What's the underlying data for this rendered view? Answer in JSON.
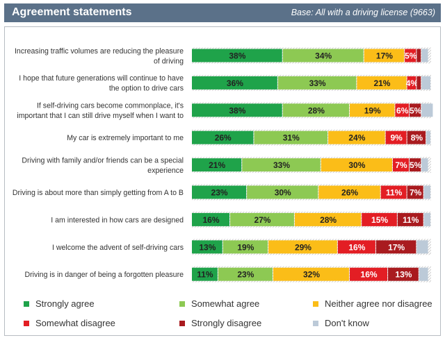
{
  "header": {
    "title": "Agreement statements",
    "base": "Base: All with a driving license (9663)"
  },
  "colors": {
    "strongly_agree": "#1fa34a",
    "somewhat_agree": "#8dc953",
    "neither": "#fbbd18",
    "somewhat_disagree": "#e31e24",
    "strongly_disagree": "#a91b1f",
    "dont_know": "#bccad8",
    "header_bg": "#5b7189"
  },
  "chart_data": {
    "type": "bar",
    "orientation": "horizontal",
    "stacked": true,
    "xlim": [
      0,
      100
    ],
    "categories": [
      "Increasing traffic volumes are reducing the pleasure of driving",
      "I hope that future generations will continue to have the option to drive cars",
      "If self-driving cars become commonplace, it's important that I can still drive myself when I want to",
      "My car is extremely important to me",
      "Driving with family and/or friends can be a special experience",
      "Driving is about more than simply getting from A to B",
      "I am interested in how cars are designed",
      "I welcome the advent of self-driving cars",
      "Driving is in danger of being a forgotten pleasure"
    ],
    "category_lines": [
      [
        "Increasing traffic volumes are reducing the pleasure",
        "of driving"
      ],
      [
        "I hope that future generations will continue to have",
        "the option to drive cars"
      ],
      [
        "If self-driving cars become commonplace, it's",
        "important that I can still drive myself when I want to"
      ],
      [
        "My car is extremely important to me"
      ],
      [
        "Driving with family and/or friends can be a special",
        "experience"
      ],
      [
        "Driving is about more than simply getting from A to B"
      ],
      [
        "I am interested in how cars are designed"
      ],
      [
        "I welcome the advent of self-driving cars"
      ],
      [
        "Driving is in danger of being a forgotten pleasure"
      ]
    ],
    "series": [
      {
        "name": "Strongly agree",
        "key": "strongly_agree",
        "values": [
          38,
          36,
          38,
          26,
          21,
          23,
          16,
          13,
          11
        ],
        "labels": [
          "38%",
          "36%",
          "38%",
          "26%",
          "21%",
          "23%",
          "16%",
          "13%",
          "11%"
        ]
      },
      {
        "name": "Somewhat agree",
        "key": "somewhat_agree",
        "values": [
          34,
          33,
          28,
          31,
          33,
          30,
          27,
          19,
          23
        ],
        "labels": [
          "34%",
          "33%",
          "28%",
          "31%",
          "33%",
          "30%",
          "27%",
          "19%",
          "23%"
        ]
      },
      {
        "name": "Neither agree nor disagree",
        "key": "neither",
        "values": [
          17,
          21,
          19,
          24,
          30,
          26,
          28,
          29,
          32
        ],
        "labels": [
          "17%",
          "21%",
          "19%",
          "24%",
          "30%",
          "26%",
          "28%",
          "29%",
          "32%"
        ]
      },
      {
        "name": "Somewhat disagree",
        "key": "somewhat_disagree",
        "values": [
          5,
          4,
          6,
          9,
          7,
          11,
          15,
          16,
          16
        ],
        "labels": [
          "5%",
          "4%",
          "6%",
          "9%",
          "7%",
          "11%",
          "15%",
          "16%",
          "16%"
        ]
      },
      {
        "name": "Strongly disagree",
        "key": "strongly_disagree",
        "values": [
          2,
          2,
          5,
          8,
          5,
          7,
          11,
          17,
          13
        ],
        "labels": [
          "",
          "",
          "5%",
          "8%",
          "5%",
          "7%",
          "11%",
          "17%",
          "13%"
        ]
      },
      {
        "name": "Don't know",
        "key": "dont_know",
        "values": [
          3,
          4,
          5,
          2,
          3,
          3,
          3,
          5,
          4
        ],
        "labels": [
          "",
          "",
          "",
          "",
          "",
          "",
          "",
          "",
          ""
        ]
      }
    ],
    "legend": [
      "Strongly agree",
      "Somewhat agree",
      "Neither agree nor disagree",
      "Somewhat disagree",
      "Strongly disagree",
      "Don't know"
    ],
    "legend_position": "bottom",
    "grid": false
  }
}
